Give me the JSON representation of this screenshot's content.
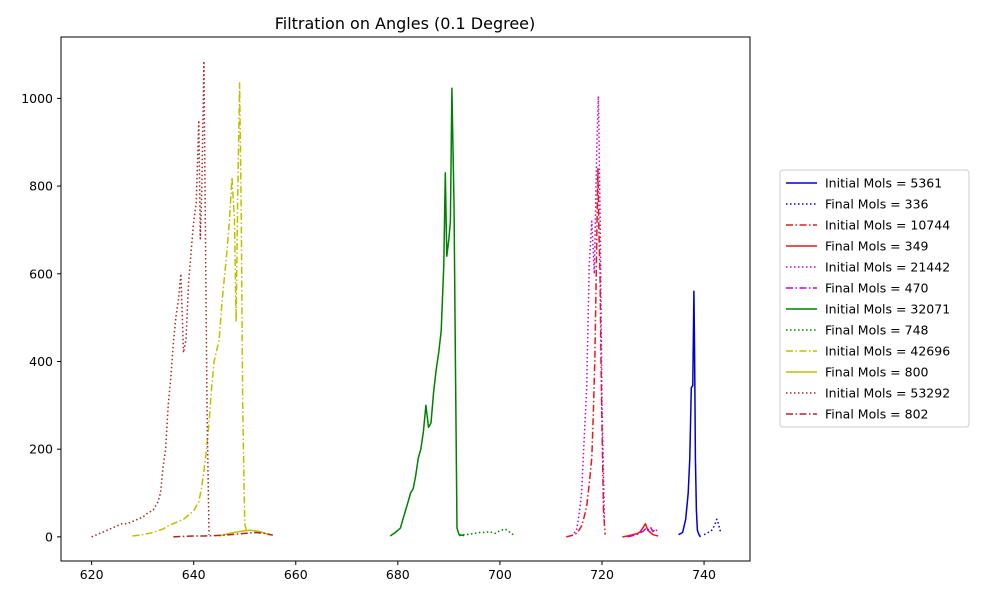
{
  "chart_data": {
    "type": "line",
    "title": "Filtration on Angles (0.1 Degree)",
    "xlabel": "",
    "ylabel": "",
    "xlim": [
      614,
      749
    ],
    "ylim": [
      -55,
      1140
    ],
    "x_ticks": [
      620,
      640,
      660,
      680,
      700,
      720,
      740
    ],
    "y_ticks": [
      0,
      200,
      400,
      600,
      800,
      1000
    ],
    "grid": false,
    "legend_position": "outside-right",
    "series": [
      {
        "name": "Initial Mols = 5361",
        "color": "#0000cc",
        "style": "solid",
        "x": [
          735,
          735.8,
          736.4,
          736.9,
          737.2,
          737.5,
          737.8,
          738,
          738.15,
          738.3,
          738.5,
          738.7,
          739,
          739.3
        ],
        "y": [
          5,
          10,
          40,
          100,
          180,
          340,
          345,
          560,
          420,
          180,
          60,
          15,
          5,
          0
        ]
      },
      {
        "name": "Final Mols = 336",
        "color": "#0000cc",
        "style": "dotted",
        "x": [
          740,
          740.8,
          741.5,
          742,
          742.5,
          742.8,
          743.2
        ],
        "y": [
          5,
          10,
          15,
          25,
          40,
          30,
          12
        ]
      },
      {
        "name": "Initial Mols = 10744",
        "color": "#e41a1c",
        "style": "dashdot",
        "x": [
          713,
          714,
          715,
          715.5,
          716,
          716.5,
          717,
          717.5,
          718,
          718.3,
          718.6,
          718.8,
          719.0,
          719.2,
          719.4,
          719.6,
          719.8,
          720,
          720.3,
          720.6
        ],
        "y": [
          0,
          3,
          8,
          15,
          25,
          45,
          70,
          120,
          180,
          280,
          400,
          550,
          700,
          840,
          700,
          600,
          400,
          250,
          60,
          5
        ]
      },
      {
        "name": "Final Mols = 349",
        "color": "#e41a1c",
        "style": "solid",
        "x": [
          724,
          725,
          726,
          727,
          727.5,
          728,
          728.5,
          729,
          729.5,
          730,
          731
        ],
        "y": [
          0,
          2,
          5,
          8,
          12,
          20,
          30,
          15,
          10,
          5,
          2
        ]
      },
      {
        "name": "Initial Mols = 21442",
        "color": "#cc00cc",
        "style": "dotted",
        "x": [
          714,
          715,
          715.5,
          716,
          716.5,
          717,
          717.5,
          718,
          718.5,
          719,
          719.3,
          719.6,
          720,
          720.5
        ],
        "y": [
          2,
          15,
          50,
          100,
          220,
          340,
          620,
          720,
          600,
          900,
          1005,
          750,
          300,
          30
        ]
      },
      {
        "name": "Final Mols = 470",
        "color": "#cc00cc",
        "style": "dashdot",
        "x": [
          725,
          726,
          727,
          727.5,
          728,
          728.5,
          729,
          729.5,
          730,
          730.5,
          731
        ],
        "y": [
          0,
          3,
          6,
          10,
          12,
          18,
          15,
          22,
          12,
          18,
          8
        ]
      },
      {
        "name": "Initial Mols = 32071",
        "color": "#008000",
        "style": "solid",
        "x": [
          678.5,
          679.5,
          680.5,
          681,
          681.5,
          682,
          682.5,
          683,
          683.5,
          684,
          684.5,
          685,
          685.5,
          686,
          686.5,
          687,
          687.5,
          688,
          688.5,
          689,
          689.3,
          689.6,
          690,
          690.3,
          690.6,
          691,
          691.3,
          691.6,
          692,
          693
        ],
        "y": [
          2,
          10,
          20,
          40,
          60,
          80,
          100,
          110,
          140,
          180,
          200,
          240,
          300,
          250,
          260,
          330,
          380,
          420,
          470,
          620,
          830,
          640,
          680,
          720,
          1023,
          760,
          380,
          20,
          5,
          3
        ]
      },
      {
        "name": "Final Mols = 748",
        "color": "#008000",
        "style": "dotted",
        "x": [
          692,
          693,
          694,
          695,
          696,
          697,
          698,
          699,
          700,
          701,
          702,
          703
        ],
        "y": [
          3,
          5,
          6,
          8,
          10,
          10,
          12,
          8,
          14,
          18,
          10,
          2
        ]
      },
      {
        "name": "Initial Mols = 42696",
        "color": "#bfbf00",
        "style": "dashdot",
        "x": [
          628,
          630,
          632,
          634,
          635,
          636,
          637,
          638,
          639,
          640,
          641,
          641.5,
          642,
          642.5,
          643,
          643.5,
          644,
          645,
          645.5,
          646,
          646.5,
          647,
          647.5,
          648,
          648.3,
          648.6,
          649,
          649.3,
          649.6,
          650,
          650.5
        ],
        "y": [
          2,
          5,
          10,
          18,
          25,
          30,
          35,
          40,
          50,
          60,
          80,
          110,
          150,
          200,
          260,
          340,
          400,
          450,
          530,
          590,
          650,
          720,
          820,
          720,
          490,
          760,
          1035,
          750,
          300,
          30,
          5
        ]
      },
      {
        "name": "Final Mols = 800",
        "color": "#bfbf00",
        "style": "solid",
        "x": [
          645,
          646,
          647,
          648,
          649,
          650,
          651,
          652,
          653,
          654,
          655
        ],
        "y": [
          2,
          5,
          8,
          10,
          12,
          14,
          15,
          14,
          12,
          8,
          4
        ]
      },
      {
        "name": "Initial Mols = 53292",
        "color": "#a52a2a",
        "style": "dotted",
        "x": [
          620,
          621,
          622,
          623,
          624,
          625,
          626,
          627,
          628,
          629,
          630,
          631,
          632,
          633,
          633.5,
          634,
          634.5,
          635,
          635.5,
          636,
          636.5,
          637,
          637.5,
          638,
          638.5,
          639,
          639.5,
          640,
          640.5,
          641,
          641.3,
          641.6,
          642,
          642.3,
          642.6,
          643
        ],
        "y": [
          0,
          5,
          10,
          15,
          20,
          25,
          30,
          30,
          35,
          40,
          45,
          55,
          60,
          80,
          100,
          160,
          200,
          300,
          360,
          440,
          500,
          540,
          600,
          420,
          450,
          580,
          650,
          720,
          760,
          950,
          680,
          800,
          1085,
          700,
          300,
          5
        ]
      },
      {
        "name": "Final Mols = 802",
        "color": "#a52a2a",
        "style": "dashdot",
        "x": [
          636,
          638,
          640,
          642,
          644,
          646,
          648,
          650,
          652,
          654,
          655.5
        ],
        "y": [
          0,
          1,
          2,
          2,
          3,
          4,
          6,
          8,
          10,
          8,
          4
        ]
      }
    ]
  }
}
